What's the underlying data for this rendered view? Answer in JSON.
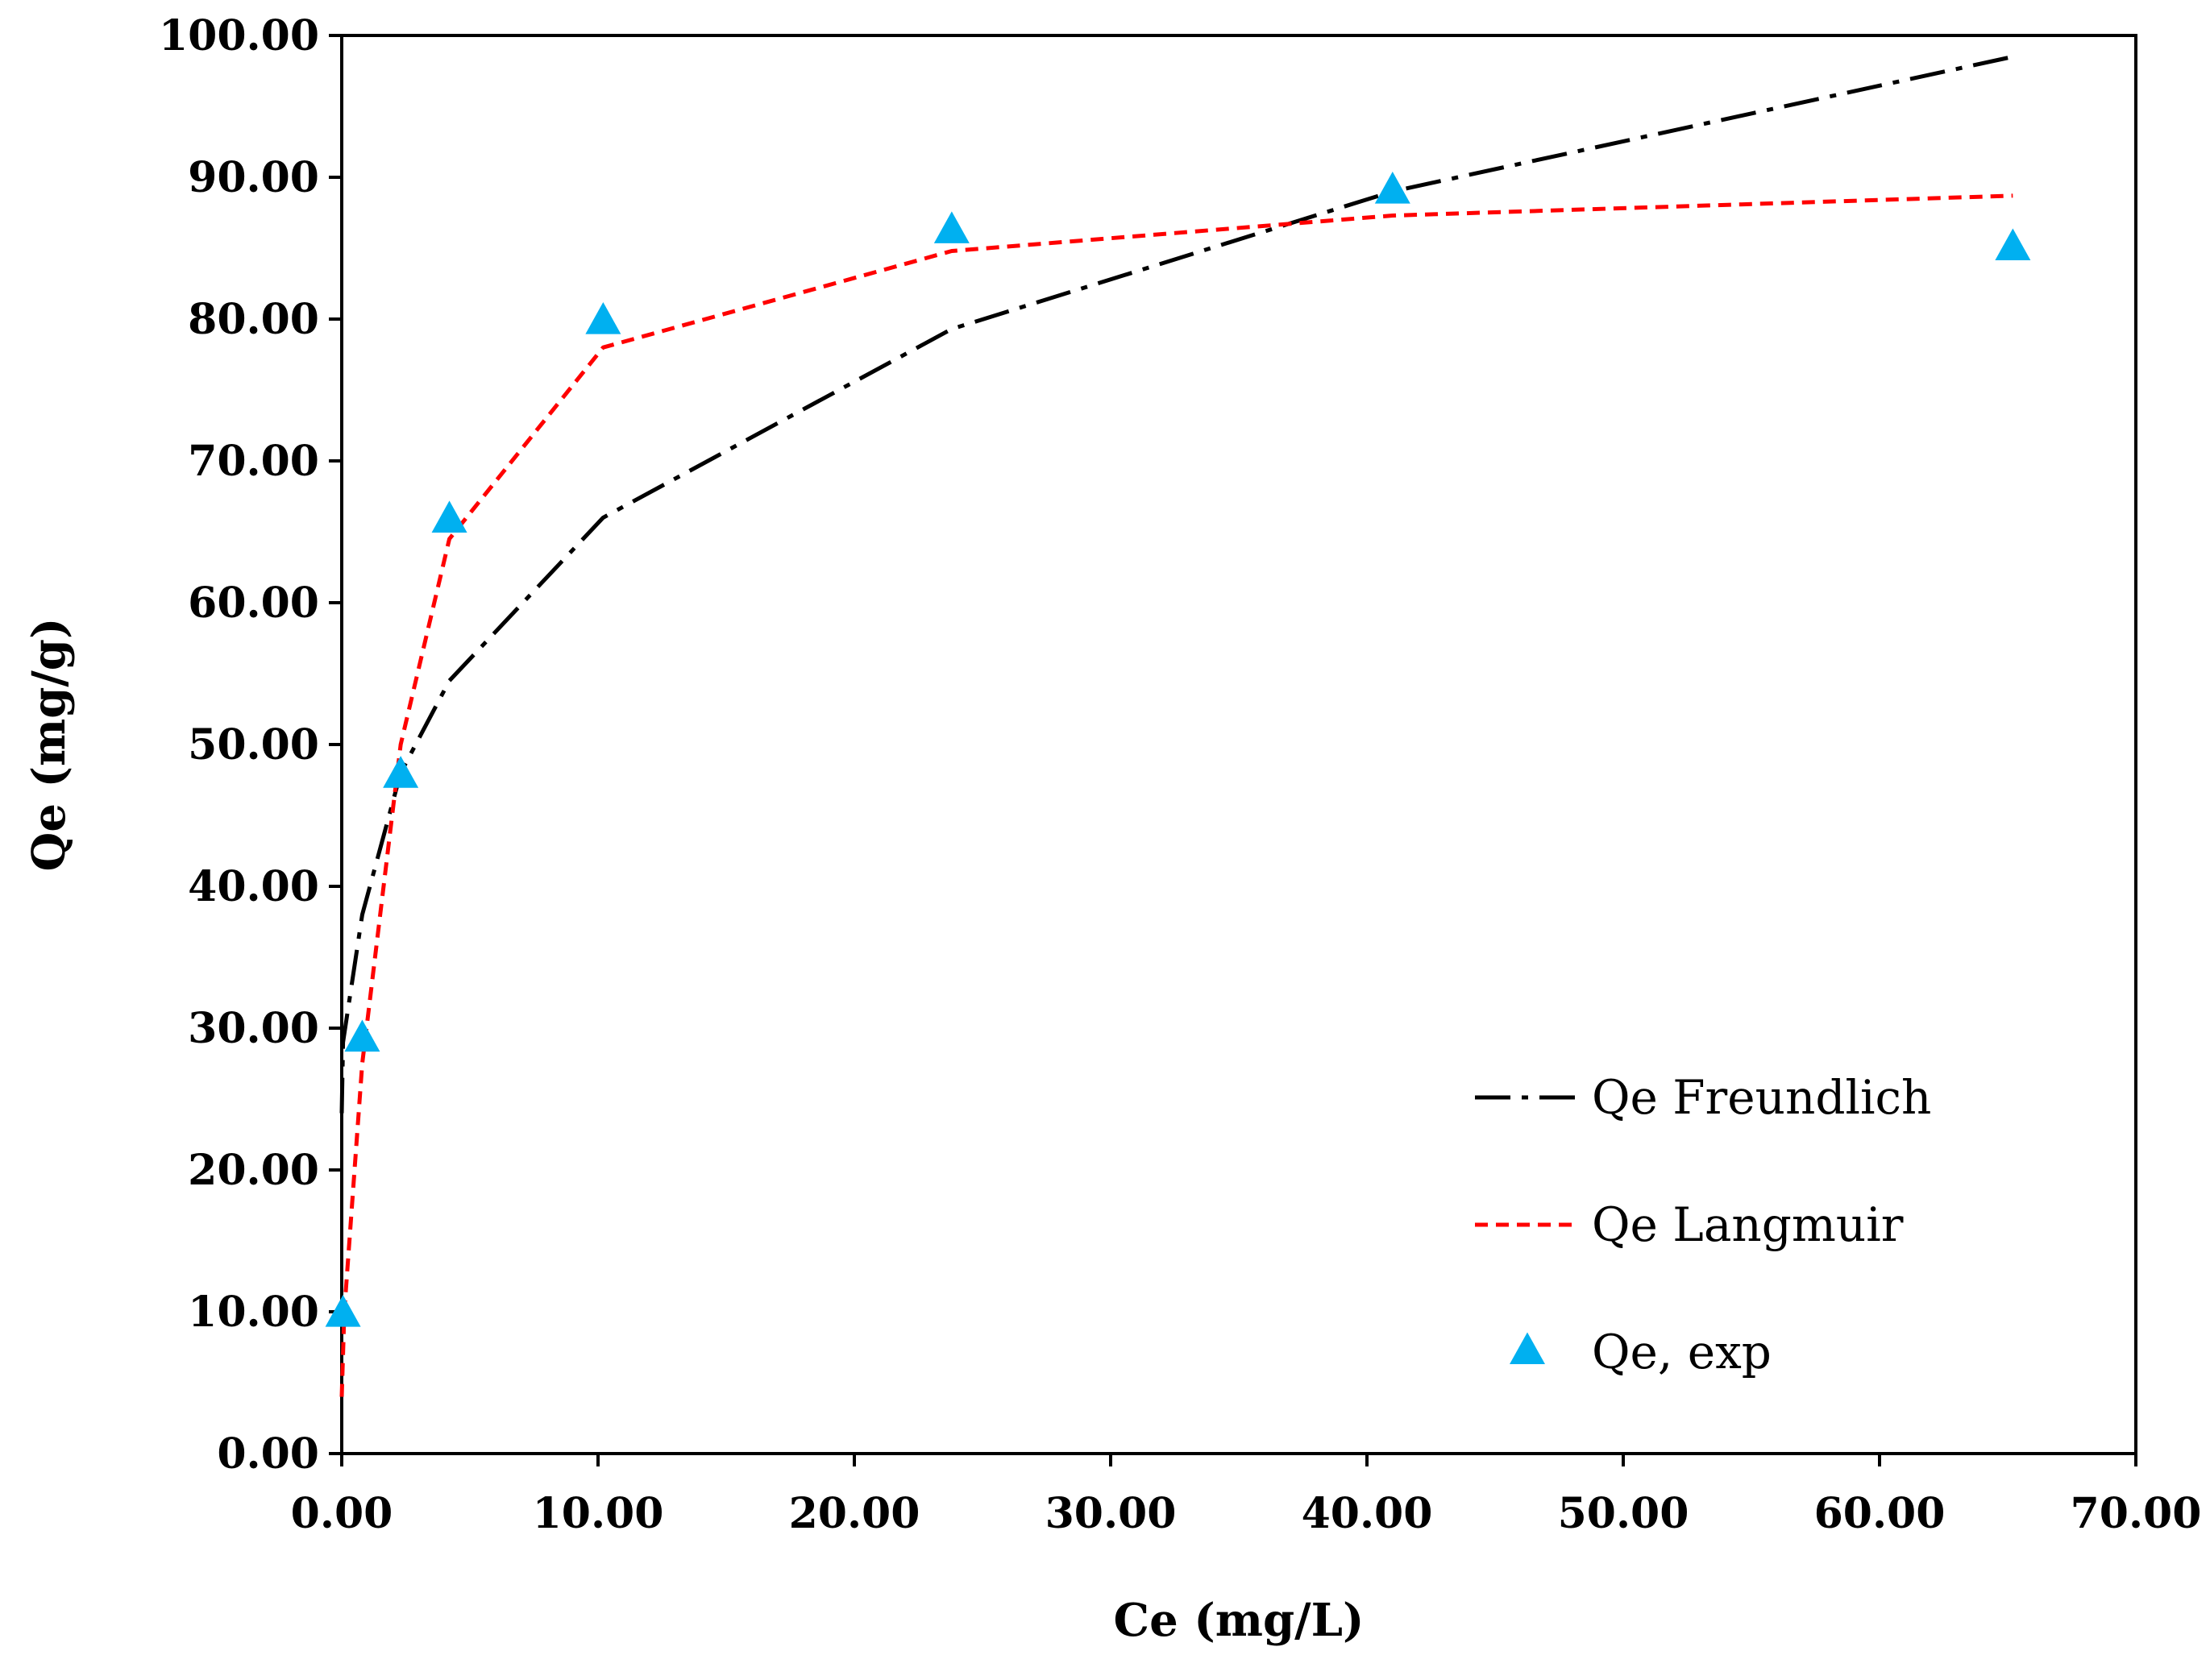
{
  "chart_data": {
    "type": "line",
    "title": "",
    "xlabel": "Ce (mg/L)",
    "ylabel": "Qe (mg/g)",
    "xlim": [
      0,
      70
    ],
    "ylim": [
      0,
      100
    ],
    "xticks": [
      "0.00",
      "10.00",
      "20.00",
      "30.00",
      "40.00",
      "50.00",
      "60.00",
      "70.00"
    ],
    "yticks": [
      "0.00",
      "10.00",
      "20.00",
      "30.00",
      "40.00",
      "50.00",
      "60.00",
      "70.00",
      "80.00",
      "90.00",
      "100.00"
    ],
    "xtick_values": [
      0,
      10,
      20,
      30,
      40,
      50,
      60,
      70
    ],
    "ytick_values": [
      0,
      10,
      20,
      30,
      40,
      50,
      60,
      70,
      80,
      90,
      100
    ],
    "grid": false,
    "legend_position": "bottom-right",
    "series": [
      {
        "name": "Qe Freundlich",
        "kind": "line",
        "style": "dash-dot",
        "color": "#000000",
        "x": [
          0.0,
          0.05,
          0.8,
          2.3,
          4.2,
          10.2,
          23.8,
          41.0,
          65.2
        ],
        "y": [
          24.0,
          29.0,
          38.0,
          48.0,
          54.5,
          66.0,
          79.3,
          89.0,
          98.5
        ]
      },
      {
        "name": "Qe Langmuir",
        "kind": "line",
        "style": "dashed",
        "color": "#ff0000",
        "x": [
          0.0,
          0.1,
          0.8,
          2.3,
          4.2,
          10.2,
          23.8,
          41.0,
          65.2
        ],
        "y": [
          4.0,
          10.0,
          27.5,
          50.0,
          64.5,
          78.0,
          84.8,
          87.3,
          88.7
        ]
      },
      {
        "name": "Qe, exp",
        "kind": "scatter",
        "marker": "triangle",
        "color": "#00b0f0",
        "x": [
          0.05,
          0.8,
          2.3,
          4.2,
          10.2,
          23.8,
          41.0,
          65.2
        ],
        "y": [
          9.8,
          29.2,
          47.8,
          65.8,
          79.8,
          86.2,
          89.0,
          85.0
        ]
      }
    ]
  }
}
